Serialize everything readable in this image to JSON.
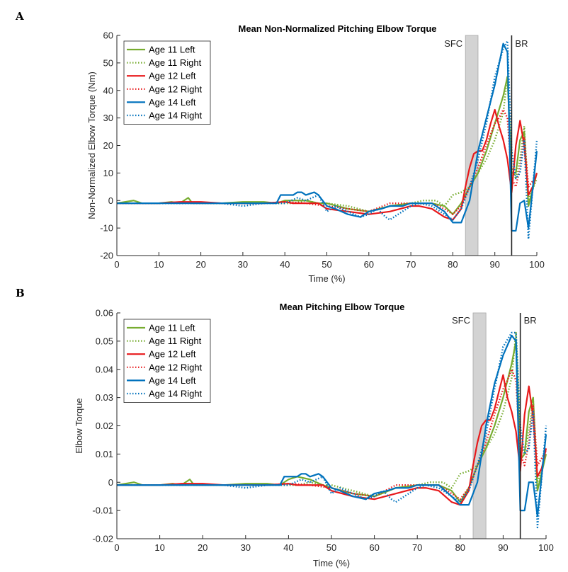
{
  "panel_labels": [
    "A",
    "B"
  ],
  "chart_data": [
    {
      "type": "line",
      "title": "Mean Non-Normalized Pitching Elbow Torque",
      "xlabel": "Time (%)",
      "ylabel": "Non-Normalized Elbow Torque (Nm)",
      "xlim": [
        0,
        100
      ],
      "ylim": [
        -20,
        60
      ],
      "xticks": [
        0,
        10,
        20,
        30,
        40,
        50,
        60,
        70,
        80,
        90,
        100
      ],
      "yticks": [
        -20,
        -10,
        0,
        10,
        20,
        30,
        40,
        50,
        60
      ],
      "grid": false,
      "legend_position": "top-left",
      "annotations": [
        {
          "label": "SFC",
          "type": "shaded-band",
          "x_range": [
            83,
            86
          ]
        },
        {
          "label": "BR",
          "type": "vertical-line",
          "x": 94
        }
      ],
      "series": [
        {
          "name": "Age 11 Left",
          "color": "#77AC30",
          "style": "solid",
          "x": [
            0,
            4,
            6,
            10,
            13,
            15,
            17,
            18,
            20,
            25,
            30,
            35,
            38,
            40,
            42,
            45,
            48,
            50,
            55,
            60,
            65,
            70,
            75,
            78,
            80,
            82,
            84,
            86,
            88,
            90,
            92,
            93,
            94,
            95,
            96,
            97,
            98,
            100
          ],
          "y": [
            -1,
            0,
            -1,
            -1,
            -0.5,
            -1,
            1,
            -1,
            -1,
            -1,
            -0.5,
            -0.5,
            -1,
            0,
            0,
            0,
            -1,
            -1,
            -3,
            -4,
            -2,
            -1,
            -1,
            -2,
            -5,
            -1,
            5,
            10,
            18,
            28,
            38,
            45,
            10,
            10,
            22,
            25,
            -2,
            10
          ]
        },
        {
          "name": "Age 11 Right",
          "color": "#77AC30",
          "style": "dotted",
          "x": [
            0,
            5,
            10,
            15,
            20,
            25,
            30,
            35,
            40,
            42,
            45,
            48,
            50,
            55,
            60,
            65,
            70,
            73,
            76,
            78,
            80,
            82,
            84,
            86,
            88,
            90,
            92,
            93,
            94,
            95,
            96,
            97,
            98,
            100
          ],
          "y": [
            -1,
            -1,
            -1,
            -1,
            -1,
            -1,
            -1,
            -1,
            -1,
            -1,
            0,
            -1,
            -1,
            -2,
            -4,
            -2,
            -1,
            0,
            0,
            -2,
            2,
            3,
            5,
            10,
            15,
            22,
            32,
            45,
            12,
            8,
            15,
            27,
            0,
            8
          ]
        },
        {
          "name": "Age 12 Left",
          "color": "#E8191B",
          "style": "solid",
          "x": [
            0,
            5,
            10,
            15,
            20,
            25,
            30,
            35,
            40,
            42,
            45,
            48,
            50,
            55,
            60,
            65,
            70,
            72,
            75,
            78,
            80,
            82,
            83,
            84,
            85,
            86,
            87,
            88,
            89,
            90,
            91,
            92,
            93,
            94,
            95,
            96,
            97,
            98,
            99,
            100
          ],
          "y": [
            -1,
            -1,
            -1,
            -0.5,
            -0.5,
            -1,
            -1,
            -1,
            -0.5,
            -1,
            -1,
            -1,
            -3,
            -4,
            -5,
            -4,
            -2,
            -2,
            -3,
            -6,
            -7,
            -3,
            5,
            12,
            17,
            18,
            18,
            22,
            28,
            33,
            27,
            22,
            15,
            3,
            20,
            29,
            20,
            2,
            5,
            10
          ]
        },
        {
          "name": "Age 12 Right",
          "color": "#E8191B",
          "style": "dotted",
          "x": [
            0,
            5,
            10,
            15,
            20,
            25,
            30,
            35,
            40,
            45,
            50,
            55,
            60,
            65,
            70,
            75,
            78,
            80,
            82,
            84,
            86,
            88,
            90,
            91,
            92,
            93,
            94,
            95,
            96,
            97,
            98,
            100
          ],
          "y": [
            -1,
            -1,
            -1,
            -1,
            -1,
            -1,
            -1,
            -1,
            -0.5,
            -1,
            -2,
            -3,
            -4,
            -1,
            -1,
            -1,
            -3,
            -5,
            -2,
            5,
            12,
            20,
            28,
            30,
            33,
            30,
            8,
            5,
            12,
            23,
            5,
            9
          ]
        },
        {
          "name": "Age 14 Left",
          "color": "#0072BD",
          "style": "solid",
          "x": [
            0,
            5,
            10,
            15,
            20,
            25,
            30,
            35,
            38,
            39,
            41,
            42,
            43,
            44,
            45,
            47,
            48,
            50,
            52,
            55,
            58,
            60,
            63,
            65,
            68,
            70,
            73,
            75,
            78,
            80,
            82,
            84,
            86,
            88,
            90,
            92,
            93,
            94,
            95,
            96,
            97,
            98,
            100
          ],
          "y": [
            -1,
            -1,
            -1,
            -1,
            -1,
            -1,
            -1,
            -1,
            -1,
            2,
            2,
            2,
            3,
            3,
            2,
            3,
            2,
            -2,
            -3,
            -5,
            -6,
            -4,
            -3,
            -2,
            -2,
            -1,
            -1,
            -1,
            -4,
            -8,
            -8,
            0,
            18,
            30,
            42,
            57,
            54,
            -11,
            -11,
            -1,
            0,
            -10,
            18
          ]
        },
        {
          "name": "Age 14 Right",
          "color": "#0072BD",
          "style": "dotted",
          "x": [
            0,
            5,
            10,
            15,
            20,
            25,
            30,
            35,
            40,
            43,
            45,
            48,
            50,
            52,
            55,
            58,
            60,
            62,
            64,
            65,
            68,
            70,
            72,
            75,
            78,
            80,
            82,
            84,
            86,
            88,
            90,
            92,
            93,
            94,
            95,
            96,
            97,
            98,
            100
          ],
          "y": [
            -1,
            -1,
            -1,
            -1,
            -1,
            -1,
            -2,
            -1,
            -1,
            1,
            0,
            2,
            -4,
            -2,
            -4,
            -6,
            -5,
            -3,
            -6,
            -7,
            -4,
            -2,
            -1,
            -2,
            -5,
            -7,
            -3,
            5,
            15,
            28,
            45,
            55,
            58,
            18,
            8,
            10,
            22,
            -14,
            22
          ]
        }
      ]
    },
    {
      "type": "line",
      "title": "Mean Pitching Elbow Torque",
      "xlabel": "Time (%)",
      "ylabel": "Elbow Torque",
      "xlim": [
        0,
        100
      ],
      "ylim": [
        -0.02,
        0.06
      ],
      "xticks": [
        0,
        10,
        20,
        30,
        40,
        50,
        60,
        70,
        80,
        90,
        100
      ],
      "yticks": [
        -0.02,
        -0.01,
        0,
        0.01,
        0.02,
        0.03,
        0.04,
        0.05,
        0.06
      ],
      "yticklabels": [
        "-0.02",
        "-0.01",
        "0",
        "0.01",
        "0.02",
        "0.03",
        "0.04",
        "0.05",
        "0.06"
      ],
      "grid": false,
      "legend_position": "top-left",
      "annotations": [
        {
          "label": "SFC",
          "type": "shaded-band",
          "x_range": [
            83,
            86
          ]
        },
        {
          "label": "BR",
          "type": "vertical-line",
          "x": 94
        }
      ],
      "series": [
        {
          "name": "Age 11 Left",
          "color": "#77AC30",
          "style": "solid",
          "x": [
            0,
            4,
            6,
            10,
            13,
            15,
            17,
            18,
            20,
            25,
            30,
            35,
            38,
            40,
            42,
            45,
            48,
            50,
            55,
            60,
            65,
            70,
            75,
            78,
            80,
            82,
            84,
            86,
            88,
            90,
            92,
            93,
            94,
            95,
            96,
            97,
            98,
            100
          ],
          "y": [
            -0.001,
            0,
            -0.001,
            -0.001,
            -0.0005,
            -0.001,
            0.001,
            -0.001,
            -0.001,
            -0.001,
            -0.0005,
            -0.0005,
            -0.001,
            0.001,
            0.002,
            0.001,
            -0.001,
            -0.002,
            -0.004,
            -0.005,
            -0.002,
            -0.001,
            -0.001,
            -0.003,
            -0.007,
            -0.002,
            0.006,
            0.012,
            0.02,
            0.03,
            0.042,
            0.05,
            0.008,
            0.01,
            0.025,
            0.03,
            -0.003,
            0.01
          ]
        },
        {
          "name": "Age 11 Right",
          "color": "#77AC30",
          "style": "dotted",
          "x": [
            0,
            5,
            10,
            15,
            20,
            25,
            30,
            35,
            40,
            42,
            45,
            48,
            50,
            55,
            60,
            65,
            70,
            73,
            76,
            78,
            80,
            82,
            84,
            86,
            88,
            90,
            92,
            93,
            94,
            95,
            96,
            97,
            98,
            100
          ],
          "y": [
            -0.001,
            -0.001,
            -0.001,
            -0.001,
            -0.001,
            -0.001,
            -0.001,
            -0.001,
            -0.001,
            -0.001,
            0,
            -0.001,
            -0.001,
            -0.003,
            -0.005,
            -0.002,
            -0.001,
            0,
            0,
            -0.002,
            0.003,
            0.004,
            0.006,
            0.012,
            0.017,
            0.025,
            0.037,
            0.053,
            0.013,
            0.01,
            0.018,
            0.029,
            0,
            0.01
          ]
        },
        {
          "name": "Age 12 Left",
          "color": "#E8191B",
          "style": "solid",
          "x": [
            0,
            5,
            10,
            15,
            20,
            25,
            30,
            35,
            40,
            42,
            45,
            48,
            50,
            55,
            60,
            65,
            70,
            72,
            75,
            78,
            80,
            82,
            83,
            84,
            85,
            86,
            87,
            88,
            89,
            90,
            91,
            92,
            93,
            94,
            95,
            96,
            97,
            98,
            99,
            100
          ],
          "y": [
            -0.001,
            -0.001,
            -0.001,
            -0.0005,
            -0.0005,
            -0.001,
            -0.001,
            -0.001,
            -0.0005,
            -0.001,
            -0.001,
            -0.001,
            -0.003,
            -0.005,
            -0.006,
            -0.004,
            -0.002,
            -0.002,
            -0.003,
            -0.007,
            -0.008,
            -0.003,
            0.006,
            0.014,
            0.02,
            0.022,
            0.022,
            0.026,
            0.032,
            0.038,
            0.03,
            0.025,
            0.018,
            0.004,
            0.024,
            0.034,
            0.023,
            0.002,
            0.005,
            0.012
          ]
        },
        {
          "name": "Age 12 Right",
          "color": "#E8191B",
          "style": "dotted",
          "x": [
            0,
            5,
            10,
            15,
            20,
            25,
            30,
            35,
            40,
            45,
            50,
            55,
            60,
            65,
            70,
            75,
            78,
            80,
            82,
            84,
            86,
            88,
            90,
            91,
            92,
            93,
            94,
            95,
            96,
            97,
            98,
            100
          ],
          "y": [
            -0.001,
            -0.001,
            -0.001,
            -0.001,
            -0.001,
            -0.001,
            -0.001,
            -0.001,
            -0.0005,
            -0.001,
            -0.002,
            -0.004,
            -0.005,
            -0.001,
            -0.001,
            -0.001,
            -0.004,
            -0.006,
            -0.002,
            0.006,
            0.014,
            0.024,
            0.033,
            0.036,
            0.04,
            0.036,
            0.01,
            0.006,
            0.014,
            0.027,
            0.006,
            0.011
          ]
        },
        {
          "name": "Age 14 Left",
          "color": "#0072BD",
          "style": "solid",
          "x": [
            0,
            5,
            10,
            15,
            20,
            25,
            30,
            35,
            38,
            39,
            41,
            42,
            43,
            44,
            45,
            47,
            48,
            50,
            52,
            55,
            58,
            60,
            63,
            65,
            68,
            70,
            73,
            75,
            78,
            80,
            82,
            84,
            86,
            88,
            90,
            92,
            93,
            94,
            95,
            96,
            97,
            98,
            100
          ],
          "y": [
            -0.001,
            -0.001,
            -0.001,
            -0.001,
            -0.001,
            -0.001,
            -0.001,
            -0.001,
            -0.001,
            0.002,
            0.002,
            0.002,
            0.003,
            0.003,
            0.002,
            0.003,
            0.002,
            -0.002,
            -0.003,
            -0.005,
            -0.006,
            -0.004,
            -0.003,
            -0.002,
            -0.002,
            -0.001,
            -0.001,
            -0.001,
            -0.005,
            -0.008,
            -0.008,
            0,
            0.02,
            0.035,
            0.045,
            0.052,
            0.05,
            -0.01,
            -0.01,
            0,
            0,
            -0.012,
            0.017
          ]
        },
        {
          "name": "Age 14 Right",
          "color": "#0072BD",
          "style": "dotted",
          "x": [
            0,
            5,
            10,
            15,
            20,
            25,
            30,
            35,
            40,
            43,
            45,
            48,
            50,
            52,
            55,
            58,
            60,
            62,
            64,
            65,
            68,
            70,
            72,
            75,
            78,
            80,
            82,
            84,
            86,
            88,
            90,
            92,
            93,
            94,
            95,
            96,
            97,
            98,
            100
          ],
          "y": [
            -0.001,
            -0.001,
            -0.001,
            -0.001,
            -0.001,
            -0.001,
            -0.002,
            -0.001,
            -0.001,
            0.001,
            0,
            0.002,
            -0.004,
            -0.002,
            -0.004,
            -0.006,
            -0.005,
            -0.003,
            -0.006,
            -0.007,
            -0.004,
            -0.002,
            -0.001,
            -0.002,
            -0.005,
            -0.007,
            -0.003,
            0.006,
            0.017,
            0.033,
            0.048,
            0.053,
            0.053,
            0.02,
            0.01,
            0.012,
            0.025,
            -0.016,
            0.02
          ]
        }
      ]
    }
  ]
}
